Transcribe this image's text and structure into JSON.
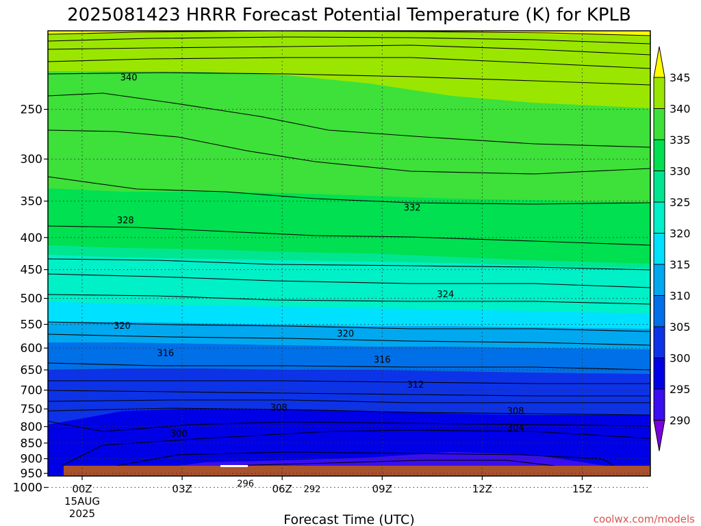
{
  "chart_data": {
    "type": "contour",
    "title": "2025081423 HRRR Forecast Potential Temperature (K) for KPLB",
    "xlabel": "Forecast Time (UTC)",
    "ylabel": "",
    "credit": "coolwx.com/models",
    "x_ticks": [
      {
        "hour": 0,
        "label": "00Z",
        "sub1": "15AUG",
        "sub2": "2025"
      },
      {
        "hour": 3,
        "label": "03Z"
      },
      {
        "hour": 6,
        "label": "06Z"
      },
      {
        "hour": 9,
        "label": "09Z"
      },
      {
        "hour": 12,
        "label": "12Z"
      },
      {
        "hour": 15,
        "label": "15Z"
      }
    ],
    "xlim_hours": [
      -0.6,
      17.4
    ],
    "y_ticks_hpa": [
      250,
      300,
      350,
      400,
      450,
      500,
      550,
      600,
      650,
      700,
      750,
      800,
      850,
      900,
      950,
      1000
    ],
    "y_scale": "log-pressure",
    "ylim_hpa": [
      1030,
      200
    ],
    "grid": "dotted",
    "colorbar": {
      "levels": [
        290,
        295,
        300,
        305,
        310,
        315,
        320,
        325,
        330,
        335,
        340,
        345
      ],
      "labels": [
        "345",
        "340",
        "335",
        "330",
        "325",
        "320",
        "315",
        "310",
        "305",
        "300",
        "295",
        "290"
      ],
      "colors": [
        "#7a00e0",
        "#3a0ef0",
        "#0000e6",
        "#0d33e8",
        "#0070e8",
        "#00a8f0",
        "#00e1ff",
        "#00f0c8",
        "#00e690",
        "#00e050",
        "#28e028",
        "#9ae600",
        "#ffff00"
      ],
      "extend": "both"
    },
    "contour_labels": [
      {
        "value": "340",
        "hour": 1.4,
        "hpa": 222
      },
      {
        "value": "332",
        "hour": 9.9,
        "hpa": 358
      },
      {
        "value": "328",
        "hour": 1.3,
        "hpa": 375
      },
      {
        "value": "324",
        "hour": 10.9,
        "hpa": 492
      },
      {
        "value": "320",
        "hour": 1.2,
        "hpa": 552
      },
      {
        "value": "320",
        "hour": 7.9,
        "hpa": 568
      },
      {
        "value": "316",
        "hour": 2.5,
        "hpa": 610
      },
      {
        "value": "316",
        "hour": 9.0,
        "hpa": 625
      },
      {
        "value": "312",
        "hour": 10.0,
        "hpa": 685
      },
      {
        "value": "308",
        "hour": 5.9,
        "hpa": 745
      },
      {
        "value": "308",
        "hour": 13.0,
        "hpa": 755
      },
      {
        "value": "304",
        "hour": 13.0,
        "hpa": 802
      },
      {
        "value": "300",
        "hour": 2.9,
        "hpa": 820
      },
      {
        "value": "296",
        "hour": 4.9,
        "hpa": 985
      },
      {
        "value": "292",
        "hour": 6.9,
        "hpa": 1005
      }
    ],
    "surface_pressure_hpa": 1012,
    "surface_color": "#a8522e"
  }
}
